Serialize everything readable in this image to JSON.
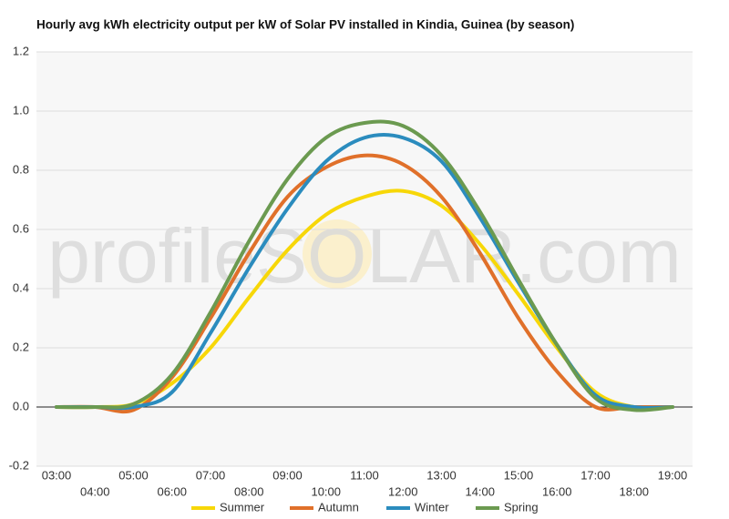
{
  "chart_data": {
    "type": "line",
    "title": "Hourly avg kWh electricity output per kW of Solar PV installed in Kindia, Guinea (by season)",
    "watermark": "profileSOLAR.com",
    "categories": [
      "03:00",
      "04:00",
      "05:00",
      "06:00",
      "07:00",
      "08:00",
      "09:00",
      "10:00",
      "11:00",
      "12:00",
      "13:00",
      "14:00",
      "15:00",
      "16:00",
      "17:00",
      "18:00",
      "19:00"
    ],
    "series": [
      {
        "name": "Summer",
        "color": "#f7d708",
        "values": [
          0,
          0,
          0.01,
          0.08,
          0.2,
          0.37,
          0.53,
          0.65,
          0.71,
          0.73,
          0.68,
          0.55,
          0.38,
          0.2,
          0.05,
          0,
          0
        ]
      },
      {
        "name": "Autumn",
        "color": "#e0702a",
        "values": [
          0,
          0,
          -0.01,
          0.1,
          0.3,
          0.52,
          0.71,
          0.81,
          0.85,
          0.82,
          0.71,
          0.52,
          0.3,
          0.12,
          0,
          0,
          0
        ]
      },
      {
        "name": "Winter",
        "color": "#2b8cbe",
        "values": [
          0,
          0,
          0,
          0.05,
          0.25,
          0.47,
          0.67,
          0.83,
          0.91,
          0.91,
          0.83,
          0.64,
          0.42,
          0.21,
          0.04,
          0,
          0
        ]
      },
      {
        "name": "Spring",
        "color": "#6b9a50",
        "values": [
          0,
          0,
          0.01,
          0.11,
          0.32,
          0.56,
          0.77,
          0.91,
          0.96,
          0.95,
          0.85,
          0.66,
          0.43,
          0.21,
          0.03,
          -0.01,
          0
        ]
      }
    ],
    "ylim": [
      -0.2,
      1.2
    ],
    "yticks": [
      -0.2,
      {
        "value": 0,
        "label": "0.0"
      },
      0.2,
      0.4,
      0.6,
      0.8,
      {
        "value": 1,
        "label": "1.0"
      },
      1.2
    ],
    "grid": true
  }
}
